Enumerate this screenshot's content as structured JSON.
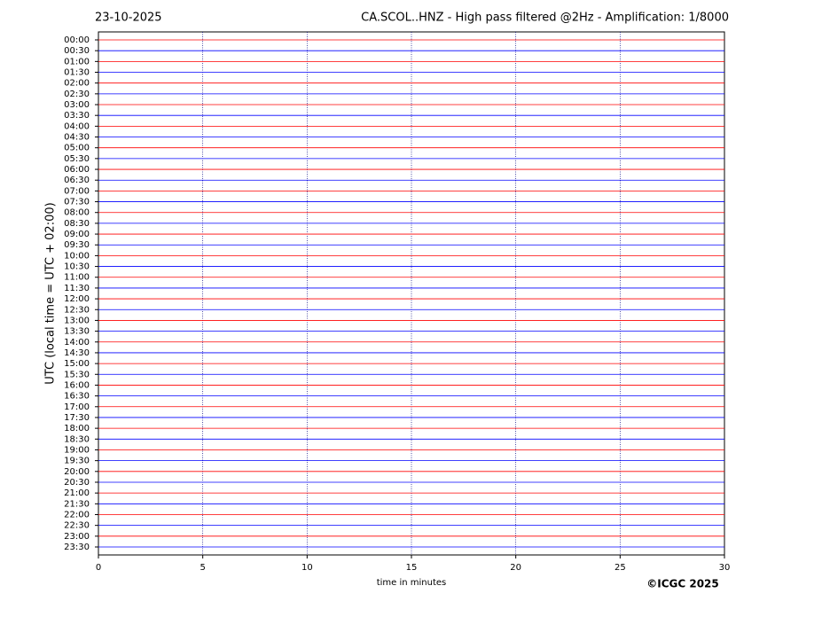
{
  "chart_data": {
    "type": "helicorder",
    "date": "23-10-2025",
    "title": "CA.SCOL..HNZ - High pass filtered @2Hz - Amplification: 1/8000",
    "ylabel": "UTC (local time = UTC + 02:00)",
    "xlabel": "time in minutes",
    "copyright": "©ICGC 2025",
    "categories": [
      "00:00",
      "00:30",
      "01:00",
      "01:30",
      "02:00",
      "02:30",
      "03:00",
      "03:30",
      "04:00",
      "04:30",
      "05:00",
      "05:30",
      "06:00",
      "06:30",
      "07:00",
      "07:30",
      "08:00",
      "08:30",
      "09:00",
      "09:30",
      "10:00",
      "10:30",
      "11:00",
      "11:30",
      "12:00",
      "12:30",
      "13:00",
      "13:30",
      "14:00",
      "14:30",
      "15:00",
      "15:30",
      "16:00",
      "16:30",
      "17:00",
      "17:30",
      "18:00",
      "18:30",
      "19:00",
      "19:30",
      "20:00",
      "20:30",
      "21:00",
      "21:30",
      "22:00",
      "22:30",
      "23:00",
      "23:30"
    ],
    "colors": [
      "#ff0000",
      "#0000ff"
    ],
    "xlim": [
      0,
      30
    ],
    "xticks": [
      0,
      5,
      10,
      15,
      20,
      25,
      30
    ],
    "grid": true
  }
}
